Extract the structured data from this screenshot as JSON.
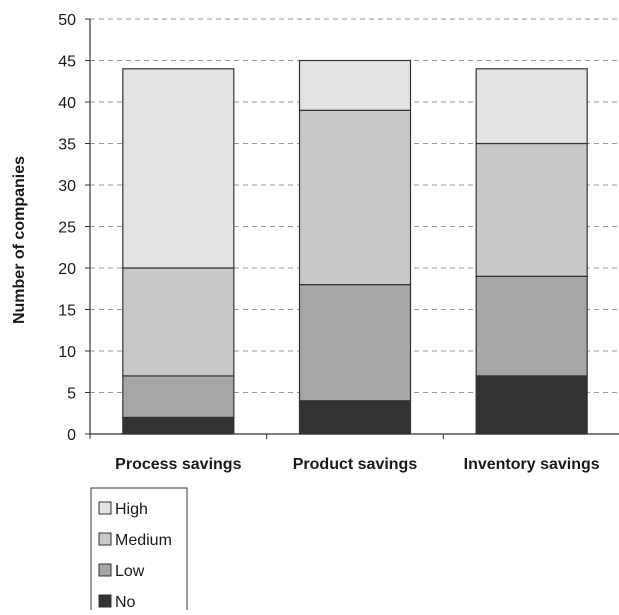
{
  "chart_data": {
    "type": "bar",
    "stacked": true,
    "title": "",
    "xlabel": "",
    "ylabel": "Number of companies",
    "ylim": [
      0,
      50
    ],
    "yticks": [
      0,
      5,
      10,
      15,
      20,
      25,
      30,
      35,
      40,
      45,
      50
    ],
    "grid": "horizontal dashed",
    "legend_position": "bottom-left",
    "categories": [
      "Process savings",
      "Product savings",
      "Inventory savings"
    ],
    "series": [
      {
        "name": "No",
        "values": [
          2,
          4,
          7
        ],
        "color": "#333333"
      },
      {
        "name": "Low",
        "values": [
          5,
          14,
          12
        ],
        "color": "#a6a6a6"
      },
      {
        "name": "Medium",
        "values": [
          13,
          21,
          16
        ],
        "color": "#c8c8c8"
      },
      {
        "name": "High",
        "values": [
          24,
          6,
          9
        ],
        "color": "#e3e3e3"
      }
    ],
    "legend_order": [
      "High",
      "Medium",
      "Low",
      "No"
    ]
  }
}
